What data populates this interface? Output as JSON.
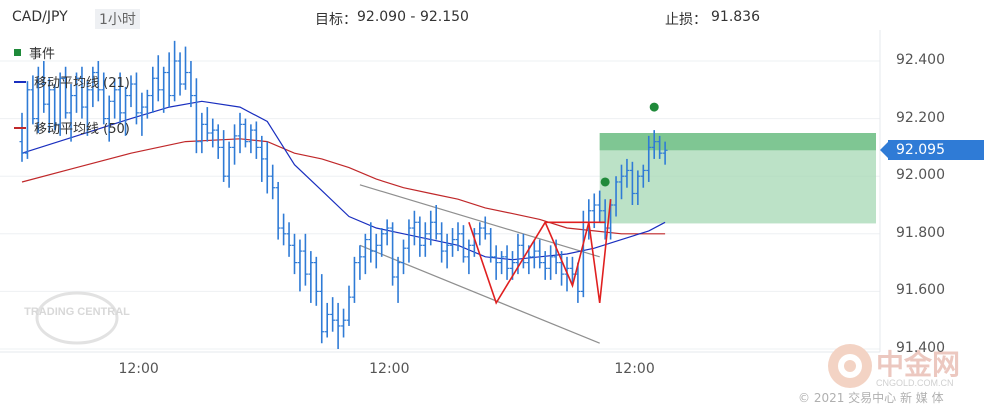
{
  "header": {
    "symbol": "CAD/JPY",
    "timeframe": "1小时",
    "target_label": "目标：",
    "target_value": "92.090 - 92.150",
    "stop_label": "止损：",
    "stop_value": "91.836"
  },
  "legend": [
    {
      "label": "事件",
      "color": "#1f8a3a",
      "kind": "square"
    },
    {
      "label": "移动平均线 (21)",
      "color": "#1a2fbf",
      "kind": "line"
    },
    {
      "label": "移动平均线 (50)",
      "color": "#c0282a",
      "kind": "line"
    }
  ],
  "current_price": "92.095",
  "watermarks": {
    "left_logo": "TRADING CENTRAL",
    "right_logo_brand": "中金网",
    "right_logo_url": "CNGOLD.COM.CN",
    "copyright": "© 2021 交易中心 新 媒 体"
  },
  "colors": {
    "bar": "#2f7bd6",
    "ma21": "#1a2fbf",
    "ma50": "#c0282a",
    "target_zone": "#a6d8b4",
    "channel": "#8f8f8f",
    "pattern": "#e02020",
    "event": "#1f8a3a"
  },
  "chart_data": {
    "type": "ohlc",
    "title": "CAD/JPY",
    "ylim": [
      91.35,
      92.48
    ],
    "ytick_labels": [
      "92.400",
      "92.200",
      "92.000",
      "91.800",
      "91.600",
      "91.400"
    ],
    "yticks": [
      92.4,
      92.2,
      92.0,
      91.8,
      91.6,
      91.4
    ],
    "xtick_labels": [
      "12:00",
      "12:00",
      "12:00"
    ],
    "xtick_bars": [
      21,
      67,
      112
    ],
    "bars": [
      [
        92.12,
        92.22,
        92.05,
        92.08
      ],
      [
        92.08,
        92.33,
        92.06,
        92.3
      ],
      [
        92.3,
        92.35,
        92.18,
        92.2
      ],
      [
        92.2,
        92.38,
        92.15,
        92.32
      ],
      [
        92.32,
        92.4,
        92.22,
        92.25
      ],
      [
        92.25,
        92.34,
        92.15,
        92.3
      ],
      [
        92.3,
        92.32,
        92.16,
        92.18
      ],
      [
        92.18,
        92.36,
        92.14,
        92.34
      ],
      [
        92.34,
        92.38,
        92.2,
        92.22
      ],
      [
        92.22,
        92.32,
        92.12,
        92.28
      ],
      [
        92.28,
        92.36,
        92.22,
        92.34
      ],
      [
        92.34,
        92.38,
        92.2,
        92.24
      ],
      [
        92.24,
        92.33,
        92.14,
        92.3
      ],
      [
        92.3,
        92.38,
        92.24,
        92.36
      ],
      [
        92.36,
        92.4,
        92.26,
        92.3
      ],
      [
        92.3,
        92.36,
        92.18,
        92.2
      ],
      [
        92.2,
        92.28,
        92.12,
        92.26
      ],
      [
        92.26,
        92.34,
        92.2,
        92.3
      ],
      [
        92.3,
        92.36,
        92.18,
        92.22
      ],
      [
        92.22,
        92.31,
        92.14,
        92.28
      ],
      [
        92.28,
        92.35,
        92.24,
        92.32
      ],
      [
        92.32,
        92.36,
        92.18,
        92.22
      ],
      [
        92.22,
        92.29,
        92.14,
        92.24
      ],
      [
        92.24,
        92.3,
        92.2,
        92.28
      ],
      [
        92.28,
        92.38,
        92.22,
        92.34
      ],
      [
        92.34,
        92.42,
        92.26,
        92.3
      ],
      [
        92.3,
        92.38,
        92.22,
        92.36
      ],
      [
        92.36,
        92.43,
        92.24,
        92.28
      ],
      [
        92.28,
        92.47,
        92.26,
        92.4
      ],
      [
        92.4,
        92.43,
        92.28,
        92.32
      ],
      [
        92.32,
        92.45,
        92.3,
        92.36
      ],
      [
        92.36,
        92.4,
        92.24,
        92.28
      ],
      [
        92.28,
        92.34,
        92.08,
        92.12
      ],
      [
        92.12,
        92.22,
        92.08,
        92.18
      ],
      [
        92.18,
        92.24,
        92.12,
        92.15
      ],
      [
        92.15,
        92.2,
        92.1,
        92.16
      ],
      [
        92.16,
        92.18,
        92.06,
        92.1
      ],
      [
        92.1,
        92.16,
        91.98,
        92.0
      ],
      [
        92.0,
        92.12,
        91.96,
        92.1
      ],
      [
        92.1,
        92.18,
        92.04,
        92.14
      ],
      [
        92.14,
        92.22,
        92.08,
        92.18
      ],
      [
        92.18,
        92.2,
        92.1,
        92.12
      ],
      [
        92.12,
        92.18,
        92.08,
        92.16
      ],
      [
        92.16,
        92.19,
        92.06,
        92.1
      ],
      [
        92.1,
        92.14,
        91.98,
        92.06
      ],
      [
        92.06,
        92.12,
        91.94,
        92.0
      ],
      [
        92.0,
        92.04,
        91.92,
        91.96
      ],
      [
        91.96,
        91.98,
        91.78,
        91.82
      ],
      [
        91.82,
        91.87,
        91.76,
        91.8
      ],
      [
        91.8,
        91.84,
        91.72,
        91.76
      ],
      [
        91.76,
        91.8,
        91.66,
        91.7
      ],
      [
        91.7,
        91.78,
        91.6,
        91.74
      ],
      [
        91.74,
        91.8,
        91.62,
        91.66
      ],
      [
        91.66,
        91.74,
        91.56,
        91.7
      ],
      [
        91.7,
        91.72,
        91.55,
        91.6
      ],
      [
        91.6,
        91.66,
        91.42,
        91.46
      ],
      [
        91.46,
        91.56,
        91.44,
        91.52
      ],
      [
        91.52,
        91.58,
        91.46,
        91.5
      ],
      [
        91.5,
        91.56,
        91.4,
        91.48
      ],
      [
        91.48,
        91.54,
        91.44,
        91.5
      ],
      [
        91.5,
        91.62,
        91.48,
        91.58
      ],
      [
        91.58,
        91.72,
        91.56,
        91.7
      ],
      [
        91.7,
        91.76,
        91.64,
        91.72
      ],
      [
        91.72,
        91.8,
        91.66,
        91.78
      ],
      [
        91.78,
        91.84,
        91.7,
        91.74
      ],
      [
        91.74,
        91.8,
        91.68,
        91.76
      ],
      [
        91.76,
        91.82,
        91.72,
        91.8
      ],
      [
        91.8,
        91.85,
        91.76,
        91.82
      ],
      [
        91.82,
        91.84,
        91.62,
        91.65
      ],
      [
        91.65,
        91.72,
        91.56,
        91.7
      ],
      [
        91.7,
        91.78,
        91.66,
        91.75
      ],
      [
        91.75,
        91.85,
        91.7,
        91.82
      ],
      [
        91.82,
        91.88,
        91.76,
        91.84
      ],
      [
        91.84,
        91.86,
        91.72,
        91.76
      ],
      [
        91.76,
        91.84,
        91.72,
        91.8
      ],
      [
        91.8,
        91.88,
        91.76,
        91.84
      ],
      [
        91.84,
        91.9,
        91.78,
        91.8
      ],
      [
        91.8,
        91.84,
        91.7,
        91.74
      ],
      [
        91.74,
        91.8,
        91.68,
        91.76
      ],
      [
        91.76,
        91.82,
        91.72,
        91.78
      ],
      [
        91.78,
        91.84,
        91.74,
        91.8
      ],
      [
        91.8,
        91.83,
        91.7,
        91.72
      ],
      [
        91.72,
        91.78,
        91.66,
        91.76
      ],
      [
        91.76,
        91.82,
        91.72,
        91.8
      ],
      [
        91.8,
        91.84,
        91.76,
        91.82
      ],
      [
        91.82,
        91.86,
        91.78,
        91.8
      ],
      [
        91.8,
        91.82,
        91.7,
        91.72
      ],
      [
        91.72,
        91.76,
        91.64,
        91.7
      ],
      [
        91.7,
        91.74,
        91.66,
        91.72
      ],
      [
        91.72,
        91.76,
        91.64,
        91.68
      ],
      [
        91.68,
        91.74,
        91.64,
        91.7
      ],
      [
        91.7,
        91.8,
        91.66,
        91.76
      ],
      [
        91.76,
        91.8,
        91.68,
        91.7
      ],
      [
        91.7,
        91.76,
        91.66,
        91.72
      ],
      [
        91.72,
        91.78,
        91.68,
        91.74
      ],
      [
        91.74,
        91.78,
        91.68,
        91.7
      ],
      [
        91.7,
        91.74,
        91.64,
        91.68
      ],
      [
        91.68,
        91.76,
        91.64,
        91.72
      ],
      [
        91.72,
        91.78,
        91.66,
        91.7
      ],
      [
        91.7,
        91.74,
        91.62,
        91.66
      ],
      [
        91.66,
        91.72,
        91.6,
        91.68
      ],
      [
        91.68,
        91.72,
        91.62,
        91.66
      ],
      [
        91.66,
        91.7,
        91.56,
        91.6
      ],
      [
        91.6,
        91.88,
        91.58,
        91.84
      ],
      [
        91.84,
        91.92,
        91.78,
        91.88
      ],
      [
        91.88,
        91.94,
        91.82,
        91.9
      ],
      [
        91.9,
        91.95,
        91.84,
        91.88
      ],
      [
        91.88,
        91.92,
        91.78,
        91.82
      ],
      [
        91.82,
        91.92,
        91.78,
        91.9
      ],
      [
        91.9,
        92.0,
        91.86,
        91.98
      ],
      [
        91.98,
        92.04,
        91.92,
        92.0
      ],
      [
        92.0,
        92.06,
        91.96,
        92.02
      ],
      [
        92.02,
        92.05,
        91.9,
        91.94
      ],
      [
        91.94,
        92.02,
        91.9,
        92.0
      ],
      [
        92.0,
        92.04,
        91.96,
        92.02
      ],
      [
        92.02,
        92.14,
        91.98,
        92.1
      ],
      [
        92.1,
        92.16,
        92.06,
        92.12
      ],
      [
        92.12,
        92.14,
        92.06,
        92.08
      ],
      [
        92.08,
        92.12,
        92.04,
        92.09
      ]
    ],
    "ma21": [
      [
        0,
        92.08
      ],
      [
        10,
        92.14
      ],
      [
        20,
        92.2
      ],
      [
        27,
        92.24
      ],
      [
        33,
        92.26
      ],
      [
        40,
        92.24
      ],
      [
        45,
        92.19
      ],
      [
        50,
        92.04
      ],
      [
        55,
        91.95
      ],
      [
        60,
        91.86
      ],
      [
        65,
        91.82
      ],
      [
        70,
        91.8
      ],
      [
        75,
        91.78
      ],
      [
        80,
        91.76
      ],
      [
        85,
        91.72
      ],
      [
        90,
        91.71
      ],
      [
        95,
        91.72
      ],
      [
        100,
        91.73
      ],
      [
        105,
        91.75
      ],
      [
        110,
        91.78
      ],
      [
        115,
        91.81
      ],
      [
        118,
        91.84
      ]
    ],
    "ma50": [
      [
        0,
        91.98
      ],
      [
        10,
        92.03
      ],
      [
        20,
        92.08
      ],
      [
        30,
        92.12
      ],
      [
        40,
        92.13
      ],
      [
        45,
        92.12
      ],
      [
        50,
        92.08
      ],
      [
        55,
        92.06
      ],
      [
        60,
        92.03
      ],
      [
        65,
        91.99
      ],
      [
        70,
        91.96
      ],
      [
        75,
        91.94
      ],
      [
        80,
        91.92
      ],
      [
        85,
        91.89
      ],
      [
        90,
        91.87
      ],
      [
        95,
        91.85
      ],
      [
        100,
        91.82
      ],
      [
        105,
        91.81
      ],
      [
        110,
        91.8
      ],
      [
        115,
        91.8
      ],
      [
        118,
        91.8
      ]
    ],
    "target_zone": {
      "y_low": 91.836,
      "y_high": 92.15,
      "x_start_bar": 106
    },
    "target_lines": [
      92.09,
      92.15
    ],
    "channel_lines": [
      [
        [
          62,
          91.97
        ],
        [
          106,
          91.72
        ]
      ],
      [
        [
          62,
          91.76
        ],
        [
          106,
          91.42
        ]
      ]
    ],
    "pattern": [
      [
        82,
        91.84
      ],
      [
        87,
        91.56
      ],
      [
        96,
        91.84
      ],
      [
        101,
        91.62
      ],
      [
        104,
        91.84
      ],
      [
        106,
        91.56
      ],
      [
        108,
        91.92
      ]
    ],
    "pattern_neckline": [
      [
        96,
        91.84
      ],
      [
        107,
        91.84
      ]
    ],
    "events": [
      [
        107,
        91.98
      ],
      [
        116,
        92.24
      ]
    ]
  }
}
